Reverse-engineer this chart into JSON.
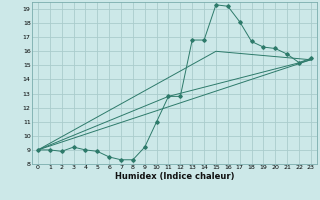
{
  "xlabel": "Humidex (Indice chaleur)",
  "bg_color": "#cce8e8",
  "grid_color": "#aacccc",
  "line_color": "#2d7a6a",
  "xlim": [
    -0.5,
    23.5
  ],
  "ylim": [
    8,
    19.5
  ],
  "xticks": [
    0,
    1,
    2,
    3,
    4,
    5,
    6,
    7,
    8,
    9,
    10,
    11,
    12,
    13,
    14,
    15,
    16,
    17,
    18,
    19,
    20,
    21,
    22,
    23
  ],
  "yticks": [
    8,
    9,
    10,
    11,
    12,
    13,
    14,
    15,
    16,
    17,
    18,
    19
  ],
  "line1_x": [
    0,
    1,
    2,
    3,
    4,
    5,
    6,
    7,
    8,
    9,
    10,
    11,
    12,
    13,
    14,
    15,
    16,
    17,
    18,
    19,
    20,
    21,
    22,
    23
  ],
  "line1_y": [
    9.0,
    9.0,
    8.9,
    9.2,
    9.0,
    8.9,
    8.5,
    8.3,
    8.3,
    9.2,
    11.0,
    12.8,
    12.8,
    16.8,
    16.8,
    19.3,
    19.2,
    18.1,
    16.7,
    16.3,
    16.2,
    15.8,
    15.2,
    15.5
  ],
  "line2_x": [
    0,
    23
  ],
  "line2_y": [
    9.0,
    15.4
  ],
  "line3_x": [
    0,
    15,
    23
  ],
  "line3_y": [
    9.0,
    16.0,
    15.4
  ],
  "line4_x": [
    0,
    11,
    23
  ],
  "line4_y": [
    9.0,
    12.8,
    15.4
  ]
}
